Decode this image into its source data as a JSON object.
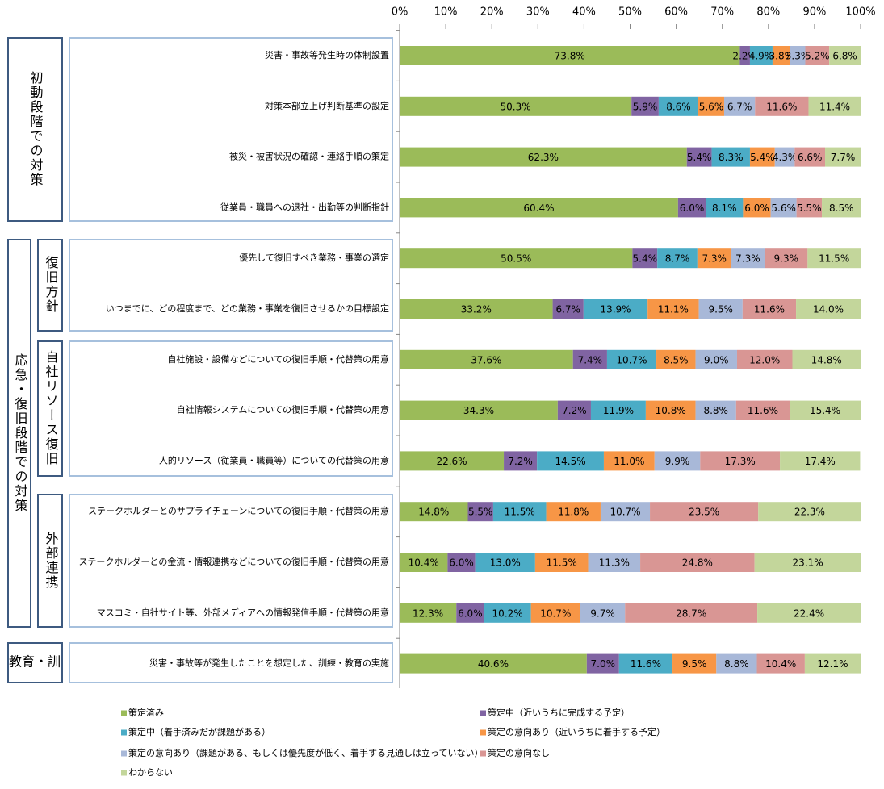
{
  "chart_data": {
    "type": "stacked_bar_horizontal",
    "categories": [
      "災害・事故等発生時の体制設置",
      "対策本部立上げ判断基準の設定",
      "被災・被害状況の確認・連絡手順の策定",
      "従業員・職員への退社・出勤等の判断指針",
      "優先して復旧すべき業務・事業の選定",
      "いつまでに、どの程度まで、どの業務・事業を復旧させるかの目標設定",
      "自社施設・設備などについての復旧手順・代替策の用意",
      "自社情報システムについての復旧手順・代替策の用意",
      "人的リソース（従業員・職員等）についての代替策の用意",
      "ステークホルダーとのサプライチェーンについての復旧手順・代替策の用意",
      "ステークホルダーとの金流・情報連携などについての復旧手順・代替策の用意",
      "マスコミ・自社サイト等、外部メディアへの情報発信手順・代替策の用意",
      "災害・事故等が発生したことを想定した、訓練・教育の実施"
    ],
    "row_groups": [
      {
        "label": "初動段階での対策"
      },
      {
        "label": "応急・復旧段階での対策"
      },
      {
        "label": "復旧方針"
      },
      {
        "label": "自社リソース復旧"
      },
      {
        "label": "外部連携"
      },
      {
        "label": "教育・訓"
      }
    ],
    "series": [
      {
        "name": "策定済み",
        "color": "#9bbb59",
        "values": [
          73.8,
          50.3,
          62.3,
          60.4,
          50.5,
          33.2,
          37.6,
          34.3,
          22.6,
          14.8,
          10.4,
          12.3,
          40.6
        ],
        "value_labels": [
          "73.8%",
          "50.3%",
          "62.3%",
          "60.4%",
          "50.5%",
          "33.2%",
          "37.6%",
          "34.3%",
          "22.6%",
          "14.8%",
          "10.4%",
          "12.3%",
          "40.6%"
        ]
      },
      {
        "name": "策定中（近いうちに完成する予定）",
        "color": "#8064a2",
        "values": [
          2.2,
          5.9,
          5.4,
          6.0,
          5.4,
          6.7,
          7.4,
          7.2,
          7.2,
          5.5,
          6.0,
          6.0,
          7.0
        ],
        "value_labels": [
          "2.2%",
          "5.9%",
          "5.4%",
          "6.0%",
          "5.4%",
          "6.7%",
          "7.4%",
          "7.2%",
          "7.2%",
          "5.5%",
          "6.0%",
          "6.0%",
          "7.0%"
        ]
      },
      {
        "name": "策定中（着手済みだが課題がある）",
        "color": "#4bacc6",
        "values": [
          4.9,
          8.6,
          8.3,
          8.1,
          8.7,
          13.9,
          10.7,
          11.9,
          14.5,
          11.5,
          13.0,
          10.2,
          11.6
        ],
        "value_labels": [
          "4.9%",
          "8.6%",
          "8.3%",
          "8.1%",
          "8.7%",
          "13.9%",
          "10.7%",
          "11.9%",
          "14.5%",
          "11.5%",
          "13.0%",
          "10.2%",
          "11.6%"
        ]
      },
      {
        "name": "策定の意向あり（近いうちに着手する予定）",
        "color": "#f79646",
        "values": [
          3.8,
          5.6,
          5.4,
          6.0,
          7.3,
          11.1,
          8.5,
          10.8,
          11.0,
          11.8,
          11.5,
          10.7,
          9.5
        ],
        "value_labels": [
          "3.8%",
          "5.6%",
          "5.4%",
          "6.0%",
          "7.3%",
          "11.1%",
          "8.5%",
          "10.8%",
          "11.0%",
          "11.8%",
          "11.5%",
          "10.7%",
          "9.5%"
        ]
      },
      {
        "name": "策定の意向あり（課題がある、もしくは優先度が低く、着手する見通しは立っていない）",
        "color": "#a8b8d8",
        "values": [
          3.3,
          6.7,
          4.3,
          5.6,
          7.3,
          9.5,
          9.0,
          8.8,
          9.9,
          10.7,
          11.3,
          9.7,
          8.8
        ],
        "value_labels": [
          "3.3%",
          "6.7%",
          "4.3%",
          "5.6%",
          "7.3%",
          "9.5%",
          "9.0%",
          "8.8%",
          "9.9%",
          "10.7%",
          "11.3%",
          "9.7%",
          "8.8%"
        ]
      },
      {
        "name": "策定の意向なし",
        "color": "#d99694",
        "values": [
          5.2,
          11.6,
          6.6,
          5.5,
          9.3,
          11.6,
          12.0,
          11.6,
          17.3,
          23.5,
          24.8,
          28.7,
          10.4
        ],
        "value_labels": [
          "5.2%",
          "11.6%",
          "6.6%",
          "5.5%",
          "9.3%",
          "11.6%",
          "12.0%",
          "11.6%",
          "17.3%",
          "23.5%",
          "24.8%",
          "28.7%",
          "10.4%"
        ]
      },
      {
        "name": "わからない",
        "color": "#c3d69b",
        "values": [
          6.8,
          11.4,
          7.7,
          8.5,
          11.5,
          14.0,
          14.8,
          15.4,
          17.4,
          22.3,
          23.1,
          22.4,
          12.1
        ],
        "value_labels": [
          "6.8%",
          "11.4%",
          "7.7%",
          "8.5%",
          "11.5%",
          "14.0%",
          "14.8%",
          "15.4%",
          "17.4%",
          "22.3%",
          "23.1%",
          "22.4%",
          "12.1%"
        ]
      }
    ],
    "xlim": [
      0,
      100
    ],
    "xticks": [
      {
        "value": 0,
        "label": "0%"
      },
      {
        "value": 10,
        "label": "10%"
      },
      {
        "value": 20,
        "label": "20%"
      },
      {
        "value": 30,
        "label": "30%"
      },
      {
        "value": 40,
        "label": "40%"
      },
      {
        "value": 50,
        "label": "50%"
      },
      {
        "value": 60,
        "label": "60%"
      },
      {
        "value": 70,
        "label": "70%"
      },
      {
        "value": 80,
        "label": "80%"
      },
      {
        "value": 90,
        "label": "90%"
      },
      {
        "value": 100,
        "label": "100%"
      }
    ],
    "grid": false
  }
}
